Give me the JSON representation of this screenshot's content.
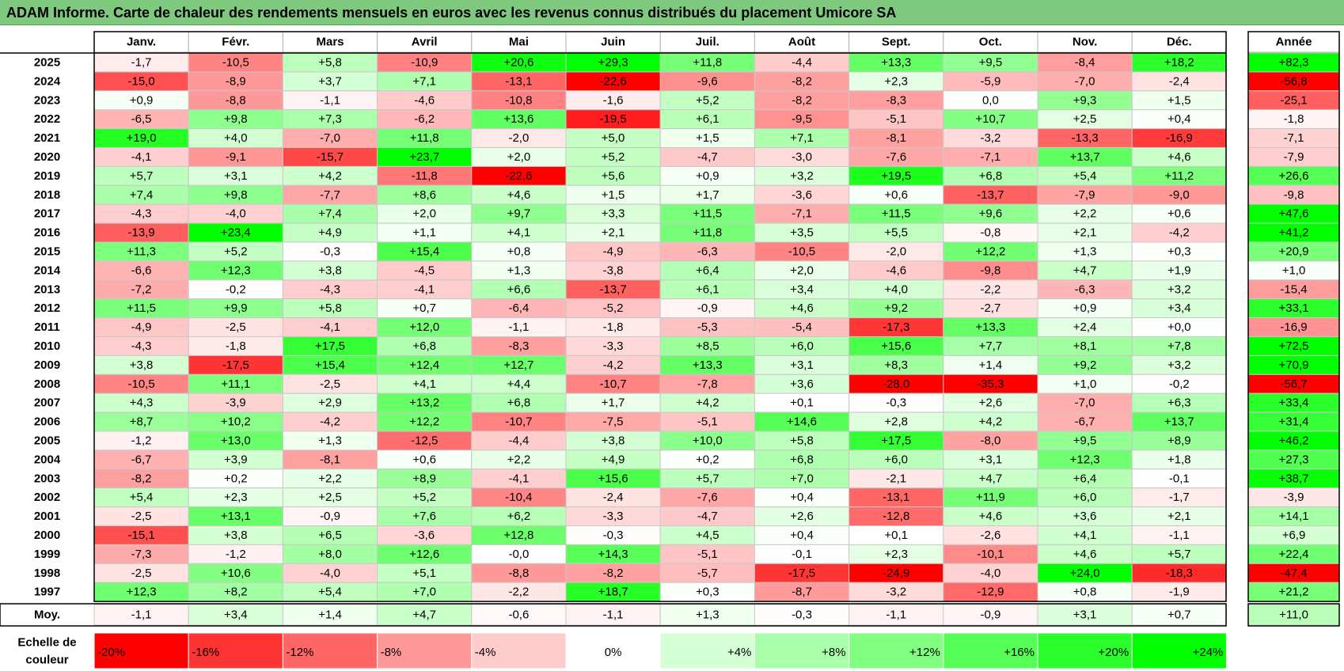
{
  "title": "ADAM Informe. Carte de chaleur des rendements mensuels en euros avec les revenus connus distribués du placement Umicore SA",
  "chart_data": {
    "type": "heatmap",
    "months": [
      "Janv.",
      "Févr.",
      "Mars",
      "Avril",
      "Mai",
      "Juin",
      "Juil.",
      "Août",
      "Sept.",
      "Oct.",
      "Nov.",
      "Déc."
    ],
    "year_label": "Année",
    "rows": [
      {
        "year": "2025",
        "values": [
          "-1,7",
          "-10,5",
          "+5,8",
          "-10,9",
          "+20,6",
          "+29,3",
          "+11,8",
          "-4,4",
          "+13,3",
          "+9,5",
          "-8,4",
          "+18,2"
        ],
        "annual": "+82,3"
      },
      {
        "year": "2024",
        "values": [
          "-15,0",
          "-8,9",
          "+3,7",
          "+7,1",
          "-13,1",
          "-22,6",
          "-9,6",
          "-8,2",
          "+2,3",
          "-5,9",
          "-7,0",
          "-2,4"
        ],
        "annual": "-56,8"
      },
      {
        "year": "2023",
        "values": [
          "+0,9",
          "-8,8",
          "-1,1",
          "-4,6",
          "-10,8",
          "-1,6",
          "+5,2",
          "-8,2",
          "-8,3",
          "0,0",
          "+9,3",
          "+1,5"
        ],
        "annual": "-25,1"
      },
      {
        "year": "2022",
        "values": [
          "-6,5",
          "+9,8",
          "+7,3",
          "-6,2",
          "+13,6",
          "-19,5",
          "+6,1",
          "-9,5",
          "-5,1",
          "+10,7",
          "+2,5",
          "+0,4"
        ],
        "annual": "-1,8"
      },
      {
        "year": "2021",
        "values": [
          "+19,0",
          "+4,0",
          "-7,0",
          "+11,8",
          "-2,0",
          "+5,0",
          "+1,5",
          "+7,1",
          "-8,1",
          "-3,2",
          "-13,3",
          "-16,9"
        ],
        "annual": "-7,1"
      },
      {
        "year": "2020",
        "values": [
          "-4,1",
          "-9,1",
          "-15,7",
          "+23,7",
          "+2,0",
          "+5,2",
          "-4,7",
          "-3,0",
          "-7,6",
          "-7,1",
          "+13,7",
          "+4,6"
        ],
        "annual": "-7,9"
      },
      {
        "year": "2019",
        "values": [
          "+5,7",
          "+3,1",
          "+4,2",
          "-11,8",
          "-22,6",
          "+5,6",
          "+0,9",
          "+3,2",
          "+19,5",
          "+6,8",
          "+5,4",
          "+11,2"
        ],
        "annual": "+26,6"
      },
      {
        "year": "2018",
        "values": [
          "+7,4",
          "+9,8",
          "-7,7",
          "+8,6",
          "+4,6",
          "+1,5",
          "+1,7",
          "-3,6",
          "+0,6",
          "-13,7",
          "-7,9",
          "-9,0"
        ],
        "annual": "-9,8"
      },
      {
        "year": "2017",
        "values": [
          "-4,3",
          "-4,0",
          "+7,4",
          "+2,0",
          "+9,7",
          "+3,3",
          "+11,5",
          "-7,1",
          "+11,5",
          "+9,6",
          "+2,2",
          "+0,6"
        ],
        "annual": "+47,6"
      },
      {
        "year": "2016",
        "values": [
          "-13,9",
          "+23,4",
          "+4,9",
          "+1,1",
          "+4,1",
          "+2,1",
          "+11,8",
          "+3,5",
          "+5,5",
          "-0,8",
          "+2,1",
          "-4,2"
        ],
        "annual": "+41,2"
      },
      {
        "year": "2015",
        "values": [
          "+11,3",
          "+5,2",
          "-0,3",
          "+15,4",
          "+0,8",
          "-4,9",
          "-6,3",
          "-10,5",
          "-2,0",
          "+12,2",
          "+1,3",
          "+0,3"
        ],
        "annual": "+20,9"
      },
      {
        "year": "2014",
        "values": [
          "-6,6",
          "+12,3",
          "+3,8",
          "-4,5",
          "+1,3",
          "-3,8",
          "+6,4",
          "+2,0",
          "-4,6",
          "-9,8",
          "+4,7",
          "+1,9"
        ],
        "annual": "+1,0"
      },
      {
        "year": "2013",
        "values": [
          "-7,2",
          "-0,2",
          "-4,3",
          "-4,1",
          "+6,6",
          "-13,7",
          "+6,1",
          "+3,4",
          "+4,0",
          "-2,2",
          "-6,3",
          "+3,2"
        ],
        "annual": "-15,4"
      },
      {
        "year": "2012",
        "values": [
          "+11,5",
          "+9,9",
          "+5,8",
          "+0,7",
          "-6,4",
          "-5,2",
          "-0,9",
          "+4,6",
          "+9,2",
          "-2,7",
          "+0,9",
          "+3,4"
        ],
        "annual": "+33,1"
      },
      {
        "year": "2011",
        "values": [
          "-4,9",
          "-2,5",
          "-4,1",
          "+12,0",
          "-1,1",
          "-1,8",
          "-5,3",
          "-5,4",
          "-17,3",
          "+13,3",
          "+2,4",
          "+0,0"
        ],
        "annual": "-16,9"
      },
      {
        "year": "2010",
        "values": [
          "-4,3",
          "-1,8",
          "+17,5",
          "+6,8",
          "-8,3",
          "-3,3",
          "+8,5",
          "+6,0",
          "+15,6",
          "+7,7",
          "+8,1",
          "+7,8"
        ],
        "annual": "+72,5"
      },
      {
        "year": "2009",
        "values": [
          "+3,8",
          "-17,5",
          "+15,4",
          "+12,4",
          "+12,7",
          "-4,2",
          "+13,3",
          "+3,1",
          "+8,3",
          "+1,4",
          "+9,2",
          "+3,2"
        ],
        "annual": "+70,9"
      },
      {
        "year": "2008",
        "values": [
          "-10,5",
          "+11,1",
          "-2,5",
          "+4,1",
          "+4,4",
          "-10,7",
          "-7,8",
          "+3,6",
          "-28,0",
          "-35,3",
          "+1,0",
          "-0,2"
        ],
        "annual": "-56,7"
      },
      {
        "year": "2007",
        "values": [
          "+4,3",
          "-3,9",
          "+2,9",
          "+13,2",
          "+6,8",
          "+1,7",
          "+4,2",
          "+0,1",
          "-0,3",
          "+2,6",
          "-7,0",
          "+6,3"
        ],
        "annual": "+33,4"
      },
      {
        "year": "2006",
        "values": [
          "+8,7",
          "+10,2",
          "-4,2",
          "+12,2",
          "-10,7",
          "-7,5",
          "-5,1",
          "+14,6",
          "+2,8",
          "+4,2",
          "-6,7",
          "+13,7"
        ],
        "annual": "+31,4"
      },
      {
        "year": "2005",
        "values": [
          "-1,2",
          "+13,0",
          "+1,3",
          "-12,5",
          "-4,4",
          "+3,8",
          "+10,0",
          "+5,8",
          "+17,5",
          "-8,0",
          "+9,5",
          "+8,9"
        ],
        "annual": "+46,2"
      },
      {
        "year": "2004",
        "values": [
          "-6,7",
          "+3,9",
          "-8,1",
          "+0,6",
          "+2,2",
          "+4,9",
          "+0,2",
          "+6,8",
          "+6,0",
          "+3,1",
          "+12,3",
          "+1,8"
        ],
        "annual": "+27,3"
      },
      {
        "year": "2003",
        "values": [
          "-8,2",
          "+0,2",
          "+2,2",
          "+8,9",
          "-4,1",
          "+15,6",
          "+5,7",
          "+7,0",
          "-2,1",
          "+4,7",
          "+6,4",
          "-0,1"
        ],
        "annual": "+38,7"
      },
      {
        "year": "2002",
        "values": [
          "+5,4",
          "+2,3",
          "+2,5",
          "+5,2",
          "-10,4",
          "-2,4",
          "-7,6",
          "+0,4",
          "-13,1",
          "+11,9",
          "+6,0",
          "-1,7"
        ],
        "annual": "-3,9"
      },
      {
        "year": "2001",
        "values": [
          "-2,5",
          "+13,1",
          "-0,9",
          "+7,6",
          "+6,2",
          "-3,3",
          "-4,7",
          "+2,6",
          "-12,8",
          "+4,6",
          "+3,6",
          "+2,1"
        ],
        "annual": "+14,1"
      },
      {
        "year": "2000",
        "values": [
          "-15,1",
          "+3,8",
          "+6,5",
          "-3,6",
          "+12,8",
          "-0,3",
          "+4,5",
          "+0,4",
          "+0,1",
          "-2,6",
          "+4,1",
          "-1,1"
        ],
        "annual": "+6,9"
      },
      {
        "year": "1999",
        "values": [
          "-7,3",
          "-1,2",
          "+8,0",
          "+12,6",
          "-0,0",
          "+14,3",
          "-5,1",
          "-0,1",
          "+2,3",
          "-10,1",
          "+4,6",
          "+5,7"
        ],
        "annual": "+22,4"
      },
      {
        "year": "1998",
        "values": [
          "-2,5",
          "+10,6",
          "-4,0",
          "+5,1",
          "-8,8",
          "-8,2",
          "-5,7",
          "-17,5",
          "-24,9",
          "-4,0",
          "+24,0",
          "-18,3"
        ],
        "annual": "-47,4"
      },
      {
        "year": "1997",
        "values": [
          "+12,3",
          "+8,2",
          "+5,4",
          "+7,0",
          "-2,2",
          "+18,7",
          "+0,3",
          "-8,7",
          "-3,2",
          "-12,9",
          "+0,8",
          "-1,9"
        ],
        "annual": "+21,2"
      }
    ],
    "average": {
      "label": "Moy.",
      "values": [
        "-1,1",
        "+3,4",
        "+1,4",
        "+4,7",
        "-0,6",
        "-1,1",
        "+1,3",
        "-0,3",
        "-1,1",
        "-0,9",
        "+3,1",
        "+0,7"
      ],
      "annual": "+11,0"
    },
    "scale": {
      "label_line1": "Echelle de",
      "label_line2": "couleur",
      "items": [
        "-20%",
        "-16%",
        "-12%",
        "-8%",
        "-4%",
        "0%",
        "+4%",
        "+8%",
        "+12%",
        "+16%",
        "+20%",
        "+24%"
      ]
    },
    "colors": {
      "neg_strong": "#ff0000",
      "neutral": "#ffffff",
      "pos_strong": "#00ff00",
      "title_bg": "#7fc97f"
    }
  }
}
